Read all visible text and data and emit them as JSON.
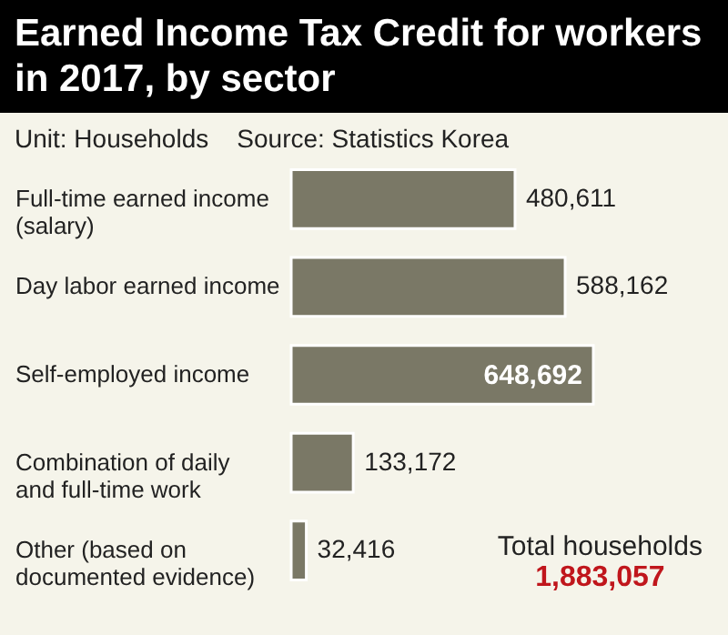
{
  "chart_data": {
    "type": "bar",
    "orientation": "horizontal",
    "title": "Earned Income Tax Credit for workers in 2017, by sector",
    "subtitle": "Unit: Households    Source: Statistics Korea",
    "categories": [
      "Full-time earned income (salary)",
      "Day labor earned income",
      "Self-employed income",
      "Combination of daily and full-time work",
      "Other (based on documented evidence)"
    ],
    "values": [
      480611,
      588162,
      648692,
      133172,
      32416
    ],
    "color": "#7a7866",
    "value_labels": [
      "480,611",
      "588,162",
      "648,692",
      "133,172",
      "32,416"
    ],
    "annotations": [
      "Total households",
      "1,883,057"
    ]
  }
}
